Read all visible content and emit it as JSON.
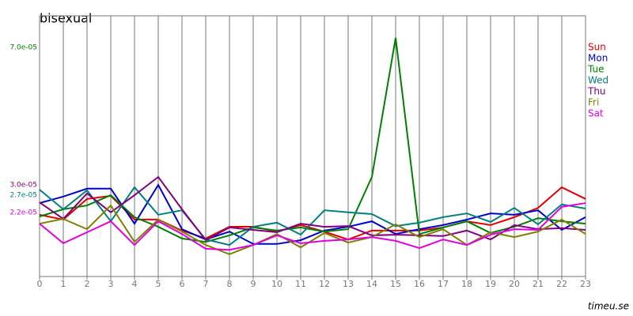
{
  "chart_data": {
    "type": "line",
    "title": "bisexual",
    "source": "timeu.se",
    "x": [
      0,
      1,
      2,
      3,
      4,
      5,
      6,
      7,
      8,
      9,
      10,
      11,
      12,
      13,
      14,
      15,
      16,
      17,
      18,
      19,
      20,
      21,
      22,
      23
    ],
    "xlim": [
      0,
      23
    ],
    "xticks": [
      0,
      1,
      2,
      3,
      4,
      5,
      6,
      7,
      8,
      9,
      10,
      11,
      12,
      13,
      14,
      15,
      16,
      17,
      18,
      19,
      20,
      21,
      22,
      23
    ],
    "ylim": [
      3.33e-06,
      7.92e-05
    ],
    "yticks": [
      {
        "value": 7e-05,
        "label": "7.0e-05",
        "color": "#008000"
      },
      {
        "value": 3e-05,
        "label": "3.0e-05",
        "color": "#800080"
      },
      {
        "value": 2.7e-05,
        "label": "2.7e-05",
        "color": "#008080"
      },
      {
        "value": 2.2e-05,
        "label": "2.2e-05",
        "color": "#e000e0"
      }
    ],
    "grid": true,
    "series": [
      {
        "name": "Sun",
        "color": "#e00000",
        "values": [
          2.13e-05,
          1.99e-05,
          2.59e-05,
          2.68e-05,
          1.99e-05,
          1.99e-05,
          1.67e-05,
          1.44e-05,
          1.78e-05,
          1.78e-05,
          1.64e-05,
          1.83e-05,
          1.64e-05,
          1.41e-05,
          1.67e-05,
          1.67e-05,
          1.67e-05,
          1.76e-05,
          1.94e-05,
          1.83e-05,
          2.06e-05,
          2.33e-05,
          2.93e-05,
          2.59e-05
        ]
      },
      {
        "name": "Mon",
        "color": "#0000cc",
        "values": [
          2.47e-05,
          2.66e-05,
          2.89e-05,
          2.89e-05,
          1.87e-05,
          3e-05,
          1.71e-05,
          1.41e-05,
          1.64e-05,
          1.28e-05,
          1.28e-05,
          1.39e-05,
          1.67e-05,
          1.78e-05,
          1.94e-05,
          1.57e-05,
          1.71e-05,
          1.83e-05,
          1.99e-05,
          2.17e-05,
          2.13e-05,
          2.26e-05,
          1.69e-05,
          2.06e-05
        ]
      },
      {
        "name": "Tue",
        "color": "#008000",
        "values": [
          2.08e-05,
          2.29e-05,
          2.4e-05,
          2.7e-05,
          2.06e-05,
          1.78e-05,
          1.44e-05,
          1.34e-05,
          1.53e-05,
          1.76e-05,
          1.67e-05,
          1.76e-05,
          1.64e-05,
          1.71e-05,
          3.23e-05,
          7.28e-05,
          1.57e-05,
          1.76e-05,
          1.94e-05,
          1.6e-05,
          1.78e-05,
          2.03e-05,
          1.94e-05,
          1.87e-05
        ]
      },
      {
        "name": "Wed",
        "color": "#008080",
        "values": [
          2.86e-05,
          2.29e-05,
          2.84e-05,
          1.94e-05,
          2.93e-05,
          2.13e-05,
          2.26e-05,
          1.41e-05,
          1.25e-05,
          1.78e-05,
          1.9e-05,
          1.55e-05,
          2.26e-05,
          2.2e-05,
          2.15e-05,
          1.8e-05,
          1.9e-05,
          2.06e-05,
          2.17e-05,
          1.92e-05,
          2.33e-05,
          1.85e-05,
          2.43e-05,
          2.31e-05
        ]
      },
      {
        "name": "Thu",
        "color": "#800080",
        "values": [
          2.49e-05,
          2.01e-05,
          2.75e-05,
          2.2e-05,
          2.7e-05,
          3.23e-05,
          2.29e-05,
          1.39e-05,
          1.76e-05,
          1.69e-05,
          1.62e-05,
          1.87e-05,
          1.78e-05,
          1.8e-05,
          1.53e-05,
          1.55e-05,
          1.53e-05,
          1.51e-05,
          1.67e-05,
          1.41e-05,
          1.83e-05,
          1.71e-05,
          1.74e-05,
          1.69e-05
        ]
      },
      {
        "name": "Fri",
        "color": "#808000",
        "values": [
          1.87e-05,
          2.01e-05,
          1.71e-05,
          2.4e-05,
          1.34e-05,
          1.99e-05,
          1.64e-05,
          1.25e-05,
          9.8e-06,
          1.25e-05,
          1.57e-05,
          1.18e-05,
          1.6e-05,
          1.32e-05,
          1.48e-05,
          1.85e-05,
          1.48e-05,
          1.71e-05,
          1.25e-05,
          1.62e-05,
          1.48e-05,
          1.64e-05,
          1.99e-05,
          1.57e-05
        ]
      },
      {
        "name": "Sat",
        "color": "#e000e0",
        "values": [
          1.87e-05,
          1.3e-05,
          1.62e-05,
          1.94e-05,
          1.25e-05,
          1.94e-05,
          1.57e-05,
          1.14e-05,
          1.11e-05,
          1.25e-05,
          1.53e-05,
          1.3e-05,
          1.37e-05,
          1.41e-05,
          1.48e-05,
          1.37e-05,
          1.16e-05,
          1.41e-05,
          1.25e-05,
          1.55e-05,
          1.71e-05,
          1.69e-05,
          2.36e-05,
          2.47e-05
        ]
      }
    ]
  }
}
